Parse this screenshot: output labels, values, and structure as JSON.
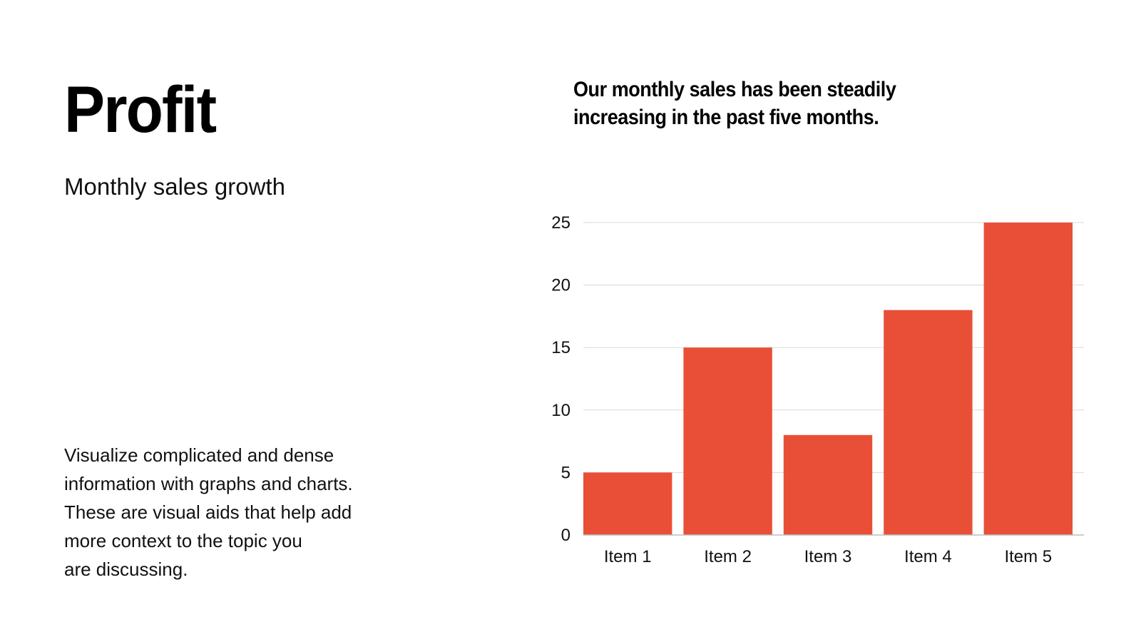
{
  "slide": {
    "title": "Profit",
    "subtitle": "Monthly sales growth",
    "headline_lines": [
      "Our monthly sales has been steadily",
      "increasing in the past five months."
    ],
    "body_lines": [
      "Visualize complicated and dense",
      "information with graphs and charts.",
      "These are visual aids that help add",
      "more context to the topic you",
      "are discussing."
    ]
  },
  "colors": {
    "bar": "#E94F37",
    "grid": "#D9D9D9",
    "axis": "#BDBDBD"
  },
  "chart_data": {
    "type": "bar",
    "categories": [
      "Item 1",
      "Item 2",
      "Item 3",
      "Item 4",
      "Item 5"
    ],
    "values": [
      5,
      15,
      8,
      18,
      25
    ],
    "yticks": [
      0,
      5,
      10,
      15,
      20,
      25
    ],
    "ylim": [
      0,
      25
    ],
    "grid": true,
    "legend": "none"
  }
}
